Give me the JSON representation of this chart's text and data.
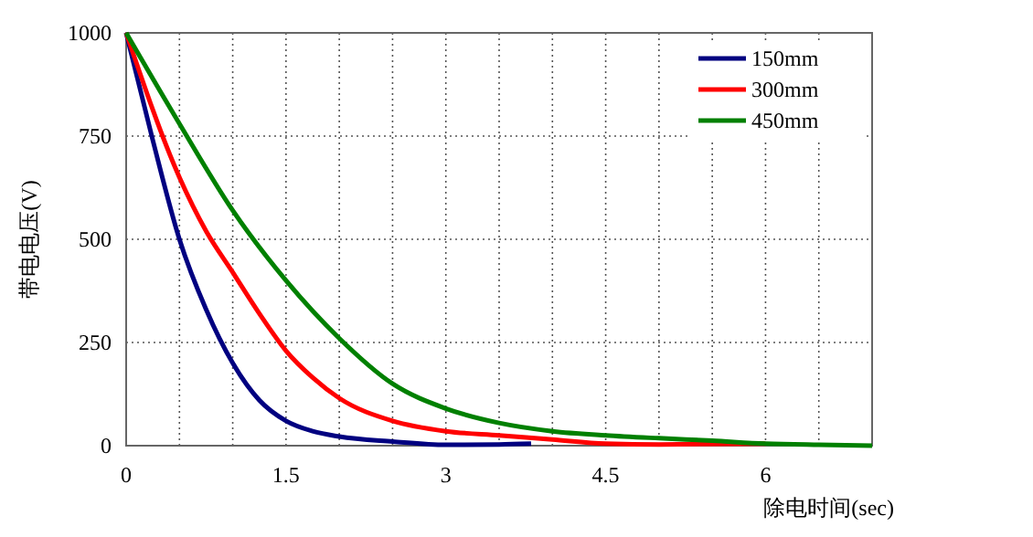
{
  "chart_data": {
    "type": "line",
    "xlabel": "除电时间(sec)",
    "ylabel": "带电电压(V)",
    "xlim": [
      0,
      7
    ],
    "ylim": [
      0,
      1000
    ],
    "xticks": [
      0,
      {
        "value": 0.5,
        "label": null
      },
      {
        "value": 1,
        "label": null
      },
      1.5,
      {
        "value": 2,
        "label": null
      },
      {
        "value": 2.5,
        "label": null
      },
      3,
      {
        "value": 3.5,
        "label": null
      },
      {
        "value": 4,
        "label": null
      },
      4.5,
      {
        "value": 5,
        "label": null
      },
      {
        "value": 5.5,
        "label": null
      },
      6,
      {
        "value": 6.5,
        "label": null
      }
    ],
    "yticks": [
      0,
      250,
      500,
      750,
      1000
    ],
    "grid": true,
    "legend": "top right",
    "line_style": "solid",
    "marker": "none",
    "series": [
      {
        "name": "150mm",
        "color": "#000080",
        "x": [
          0,
          0.25,
          0.5,
          0.75,
          1,
          1.25,
          1.5,
          1.75,
          2,
          2.5,
          3,
          3.5,
          3.8
        ],
        "values": [
          1000,
          740,
          500,
          330,
          200,
          110,
          60,
          35,
          22,
          10,
          2,
          3,
          5
        ]
      },
      {
        "name": "300mm",
        "color": "#ff0000",
        "x": [
          0,
          0.5,
          0.75,
          1,
          1.25,
          1.5,
          1.75,
          2,
          2.5,
          3,
          3.5,
          4,
          4.5,
          5,
          6
        ],
        "values": [
          1000,
          650,
          520,
          420,
          320,
          230,
          165,
          115,
          60,
          35,
          25,
          15,
          5,
          3,
          5
        ]
      },
      {
        "name": "450mm",
        "color": "#008000",
        "x": [
          0,
          0.5,
          1,
          1.5,
          2,
          2.5,
          3,
          3.5,
          4,
          4.5,
          5,
          5.5,
          6,
          6.5,
          7
        ],
        "values": [
          1000,
          780,
          570,
          400,
          260,
          150,
          90,
          55,
          35,
          25,
          18,
          12,
          5,
          2,
          0
        ]
      }
    ]
  }
}
